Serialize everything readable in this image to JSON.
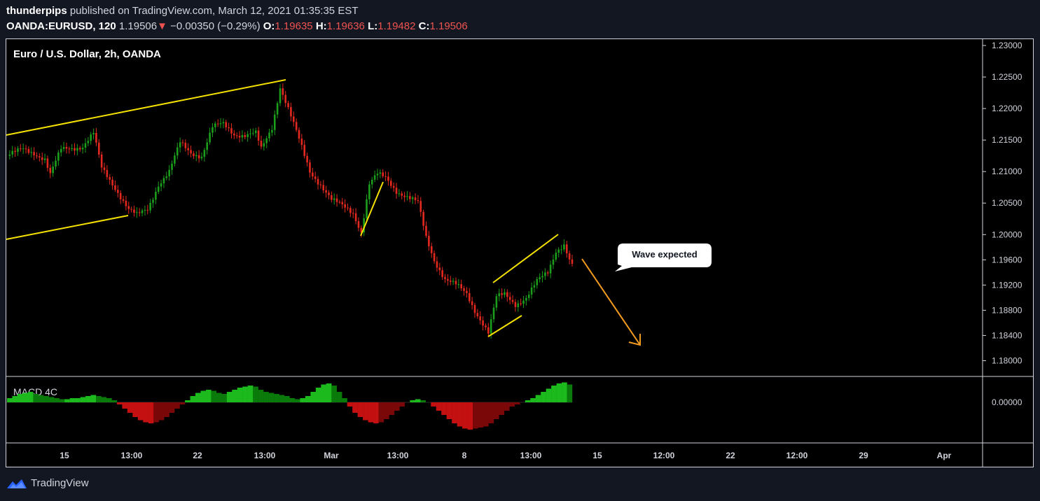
{
  "header": {
    "publisher": "thunderpips",
    "published_text": "published on TradingView.com, March 12, 2021 01:35:35 EST",
    "symbol": "OANDA:EURUSD, 120",
    "last": "1.19506",
    "change_arrow": "▼",
    "change": "−0.00350 (−0.29%)",
    "o_label": "O:",
    "o_value": "1.19635",
    "h_label": "H:",
    "h_value": "1.19636",
    "l_label": "L:",
    "l_value": "1.19482",
    "c_label": "C:",
    "c_value": "1.19506"
  },
  "footer": {
    "brand": "TradingView",
    "logo_icon": "tradingview-logo-icon"
  },
  "colors": {
    "up": "#1b9e1b",
    "down": "#e3291f",
    "trend": "#f5e100",
    "arrow": "#f29a1d",
    "macd_up": "#1cba1c",
    "macd_up_dark": "#0a7a0a",
    "macd_down": "#c41010",
    "macd_down_dark": "#7a0808"
  },
  "chart_data": {
    "type": "candlestick",
    "title": "Euro / U.S. Dollar, 2h, OANDA",
    "ylim": [
      1.1775,
      1.231
    ],
    "y_ticks": [
      "1.23000",
      "1.22500",
      "1.22000",
      "1.21500",
      "1.21000",
      "1.20500",
      "1.20000",
      "1.19600",
      "1.19200",
      "1.18800",
      "1.18400",
      "1.18000"
    ],
    "x_ticks": [
      "15",
      "13:00",
      "22",
      "13:00",
      "Mar",
      "13:00",
      "8",
      "13:00",
      "15",
      "12:00",
      "22",
      "12:00",
      "29",
      "Apr"
    ],
    "price_path": [
      [
        0,
        1.2125
      ],
      [
        6,
        1.2135
      ],
      [
        10,
        1.213
      ],
      [
        14,
        1.212
      ],
      [
        16,
        1.2095
      ],
      [
        20,
        1.2135
      ],
      [
        24,
        1.2138
      ],
      [
        28,
        1.214
      ],
      [
        32,
        1.216
      ],
      [
        35,
        1.2105
      ],
      [
        40,
        1.2075
      ],
      [
        45,
        1.204
      ],
      [
        48,
        1.203
      ],
      [
        52,
        1.204
      ],
      [
        56,
        1.208
      ],
      [
        60,
        1.21
      ],
      [
        64,
        1.2145
      ],
      [
        68,
        1.213
      ],
      [
        72,
        1.2125
      ],
      [
        76,
        1.217
      ],
      [
        80,
        1.2175
      ],
      [
        84,
        1.216
      ],
      [
        88,
        1.2158
      ],
      [
        92,
        1.216
      ],
      [
        94,
        1.2135
      ],
      [
        98,
        1.217
      ],
      [
        101,
        1.2235
      ],
      [
        104,
        1.22
      ],
      [
        108,
        1.215
      ],
      [
        112,
        1.21
      ],
      [
        116,
        1.208
      ],
      [
        120,
        1.2055
      ],
      [
        124,
        1.2045
      ],
      [
        128,
        1.2035
      ],
      [
        131,
        1.2005
      ],
      [
        134,
        1.208
      ],
      [
        137,
        1.2095
      ],
      [
        140,
        1.209
      ],
      [
        144,
        1.207
      ],
      [
        148,
        1.206
      ],
      [
        152,
        1.205
      ],
      [
        155,
        1.1995
      ],
      [
        158,
        1.196
      ],
      [
        162,
        1.193
      ],
      [
        166,
        1.192
      ],
      [
        170,
        1.1905
      ],
      [
        173,
        1.188
      ],
      [
        176,
        1.186
      ],
      [
        178,
        1.1845
      ],
      [
        181,
        1.19
      ],
      [
        184,
        1.1905
      ],
      [
        188,
        1.189
      ],
      [
        192,
        1.19
      ],
      [
        196,
        1.1925
      ],
      [
        200,
        1.194
      ],
      [
        203,
        1.1975
      ],
      [
        206,
        1.1985
      ],
      [
        208,
        1.196
      ],
      [
        209,
        1.1951
      ]
    ],
    "macd": [
      0.2,
      0.3,
      0.4,
      0.45,
      0.5,
      0.4,
      0.35,
      0.3,
      0.25,
      0.2,
      0.15,
      0.15,
      0.2,
      0.2,
      0.25,
      0.3,
      0.35,
      0.3,
      0.25,
      0.2,
      0.1,
      -0.1,
      -0.3,
      -0.5,
      -0.7,
      -0.85,
      -0.95,
      -1.0,
      -0.95,
      -0.85,
      -0.7,
      -0.5,
      -0.3,
      -0.1,
      0.1,
      0.3,
      0.45,
      0.55,
      0.6,
      0.55,
      0.45,
      0.4,
      0.5,
      0.6,
      0.7,
      0.75,
      0.8,
      0.75,
      0.6,
      0.5,
      0.45,
      0.4,
      0.35,
      0.3,
      0.2,
      0.15,
      0.2,
      0.3,
      0.5,
      0.7,
      0.85,
      0.9,
      0.8,
      0.5,
      0.2,
      -0.2,
      -0.5,
      -0.7,
      -0.85,
      -0.95,
      -1.0,
      -0.95,
      -0.8,
      -0.6,
      -0.4,
      -0.2,
      0.0,
      0.1,
      0.15,
      0.1,
      0.0,
      -0.2,
      -0.4,
      -0.6,
      -0.8,
      -1.0,
      -1.15,
      -1.25,
      -1.3,
      -1.25,
      -1.2,
      -1.15,
      -1.0,
      -0.8,
      -0.6,
      -0.4,
      -0.2,
      -0.1,
      0.0,
      0.1,
      0.2,
      0.35,
      0.5,
      0.65,
      0.8,
      0.9,
      0.95,
      0.85
    ],
    "macd_label": "MACD 4C",
    "macd_zero": "0.00000",
    "annotations": {
      "callout_text": "Wave expected"
    }
  }
}
